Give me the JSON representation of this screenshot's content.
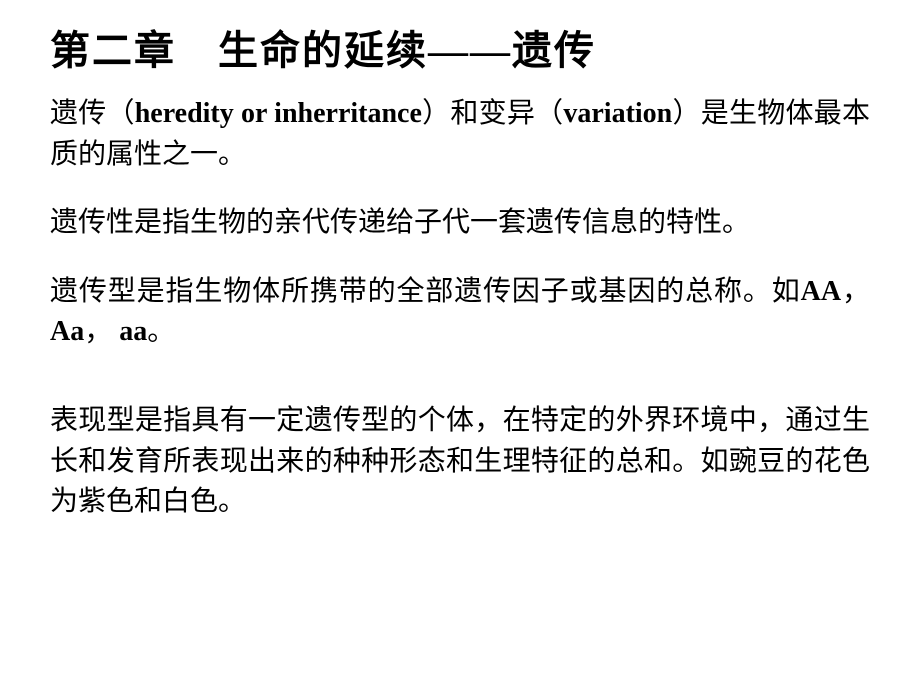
{
  "title": "第二章　生命的延续——遗传",
  "paragraphs": {
    "p1_a": "遗传（",
    "p1_b": "heredity or inherritance",
    "p1_c": "）和变异（",
    "p1_d": "variation",
    "p1_e": "）是生物体最本质的属性之一。",
    "p2": "遗传性是指生物的亲代传递给子代一套遗传信息的特性。",
    "p3_a": "遗传型是指生物体所携带的全部遗传因子或基因的总称。如",
    "p3_b": "AA",
    "p3_c": "，",
    "p3_d": "Aa",
    "p3_e": "， ",
    "p3_f": "aa",
    "p3_g": "。",
    "p4": "表现型是指具有一定遗传型的个体，在特定的外界环境中，通过生长和发育所表现出来的种种形态和生理特征的总和。如豌豆的花色为紫色和白色。"
  },
  "colors": {
    "background": "#ffffff",
    "text": "#000000"
  },
  "typography": {
    "title_fontsize": 40,
    "body_fontsize": 28,
    "font_family_cjk": "SimSun",
    "font_family_latin": "Times New Roman",
    "latin_weight": "bold"
  }
}
